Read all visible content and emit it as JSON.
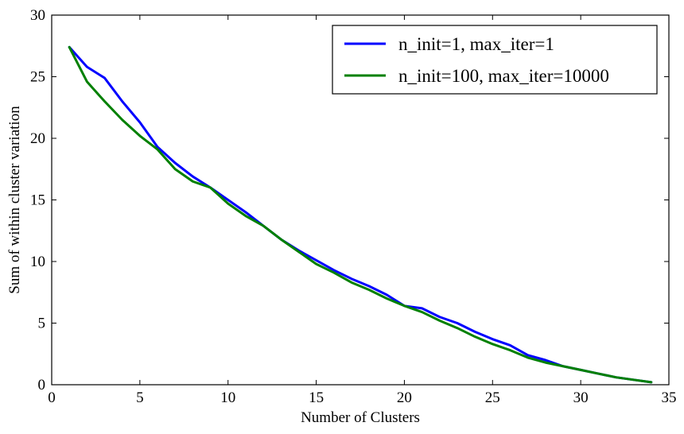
{
  "chart_data": {
    "type": "line",
    "title": "",
    "xlabel": "Number of Clusters",
    "ylabel": "Sum of within cluster variation",
    "xlim": [
      0,
      35
    ],
    "ylim": [
      0,
      30
    ],
    "xticks": [
      0,
      5,
      10,
      15,
      20,
      25,
      30,
      35
    ],
    "yticks": [
      0,
      5,
      10,
      15,
      20,
      25,
      30
    ],
    "grid": false,
    "legend_position": "top-right",
    "x": [
      1,
      2,
      3,
      4,
      5,
      6,
      7,
      8,
      9,
      10,
      11,
      12,
      13,
      14,
      15,
      16,
      17,
      18,
      19,
      20,
      21,
      22,
      23,
      24,
      25,
      26,
      27,
      28,
      29,
      30,
      31,
      32,
      33,
      34
    ],
    "series": [
      {
        "name": "n_init=1, max_iter=1",
        "color": "#0000ff",
        "values": [
          27.4,
          25.8,
          24.9,
          23.0,
          21.3,
          19.3,
          18.0,
          16.9,
          16.0,
          15.0,
          14.0,
          12.9,
          11.8,
          10.9,
          10.1,
          9.3,
          8.6,
          8.0,
          7.3,
          6.4,
          6.2,
          5.5,
          5.0,
          4.3,
          3.7,
          3.2,
          2.4,
          2.0,
          1.5,
          1.2,
          0.9,
          0.6,
          0.4,
          0.2
        ]
      },
      {
        "name": "n_init=100, max_iter=10000",
        "color": "#008000",
        "values": [
          27.4,
          24.6,
          23.0,
          21.5,
          20.2,
          19.1,
          17.5,
          16.5,
          16.0,
          14.7,
          13.7,
          12.9,
          11.8,
          10.8,
          9.8,
          9.1,
          8.3,
          7.7,
          7.0,
          6.4,
          5.9,
          5.2,
          4.6,
          3.9,
          3.3,
          2.8,
          2.2,
          1.8,
          1.5,
          1.2,
          0.9,
          0.6,
          0.4,
          0.2
        ]
      }
    ]
  }
}
